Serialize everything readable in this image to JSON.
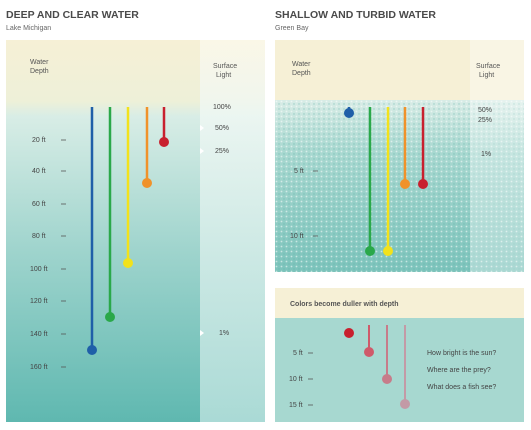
{
  "left_panel": {
    "title": "DEEP AND CLEAR WATER",
    "subtitle": "Lake Michigan",
    "depth_header": [
      "Water",
      "Depth"
    ],
    "light_header": [
      "Surface",
      "Light"
    ],
    "depth_labels": [
      "20 ft",
      "40 ft",
      "60 ft",
      "80 ft",
      "100 ft",
      "120 ft",
      "140 ft",
      "160 ft"
    ],
    "light_labels": [
      "100%",
      "50%",
      "25%",
      "1%"
    ]
  },
  "right_panel": {
    "title": "SHALLOW AND TURBID WATER",
    "subtitle": "Green Bay",
    "depth_header": [
      "Water",
      "Depth"
    ],
    "light_header": [
      "Surface",
      "Light"
    ],
    "depth_labels": [
      "5 ft",
      "10 ft"
    ],
    "light_labels": [
      "50%",
      "25%",
      "1%"
    ]
  },
  "inset": {
    "title": "Colors become duller with depth",
    "depth_labels": [
      "5 ft",
      "10 ft",
      "15 ft"
    ],
    "questions": [
      "How bright is the sun?",
      "Where are the prey?",
      "What does a fish see?"
    ]
  }
}
